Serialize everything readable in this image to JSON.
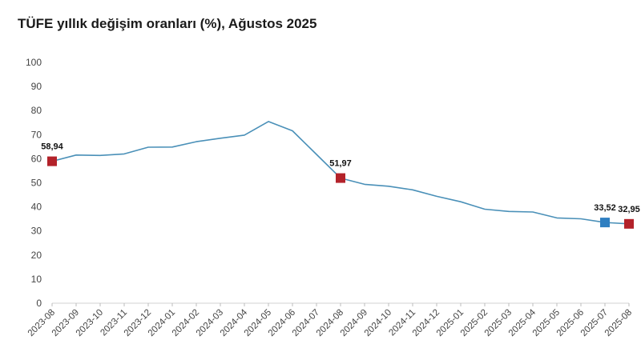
{
  "chart_data": {
    "type": "line",
    "title": "TÜFE yıllık değişim oranları (%), Ağustos 2025",
    "xlabel": "",
    "ylabel": "",
    "ylim": [
      0,
      100
    ],
    "y_ticks": [
      0,
      10,
      20,
      30,
      40,
      50,
      60,
      70,
      80,
      90,
      100
    ],
    "grid": false,
    "legend": "none",
    "x": [
      "2023-08",
      "2023-09",
      "2023-10",
      "2023-11",
      "2023-12",
      "2024-01",
      "2024-02",
      "2024-03",
      "2024-04",
      "2024-05",
      "2024-06",
      "2024-07",
      "2024-08",
      "2024-09",
      "2024-10",
      "2024-11",
      "2024-12",
      "2025-01",
      "2025-02",
      "2025-03",
      "2025-04",
      "2025-05",
      "2025-06",
      "2025-07",
      "2025-08"
    ],
    "series": [
      {
        "values": [
          58.94,
          61.53,
          61.36,
          61.98,
          64.77,
          64.86,
          67.07,
          68.5,
          69.8,
          75.45,
          71.6,
          61.78,
          51.97,
          49.38,
          48.58,
          47.09,
          44.38,
          42.12,
          39.05,
          38.1,
          37.86,
          35.41,
          35.05,
          33.52,
          32.95
        ],
        "color": "#4a90b8"
      }
    ],
    "highlights": [
      {
        "x": "2023-08",
        "value": 58.94,
        "label": "58,94",
        "color": "#b3222a"
      },
      {
        "x": "2024-08",
        "value": 51.97,
        "label": "51,97",
        "color": "#b3222a"
      },
      {
        "x": "2025-07",
        "value": 33.52,
        "label": "33,52",
        "color": "#2f7fc1"
      },
      {
        "x": "2025-08",
        "value": 32.95,
        "label": "32,95",
        "color": "#b3222a"
      }
    ]
  }
}
